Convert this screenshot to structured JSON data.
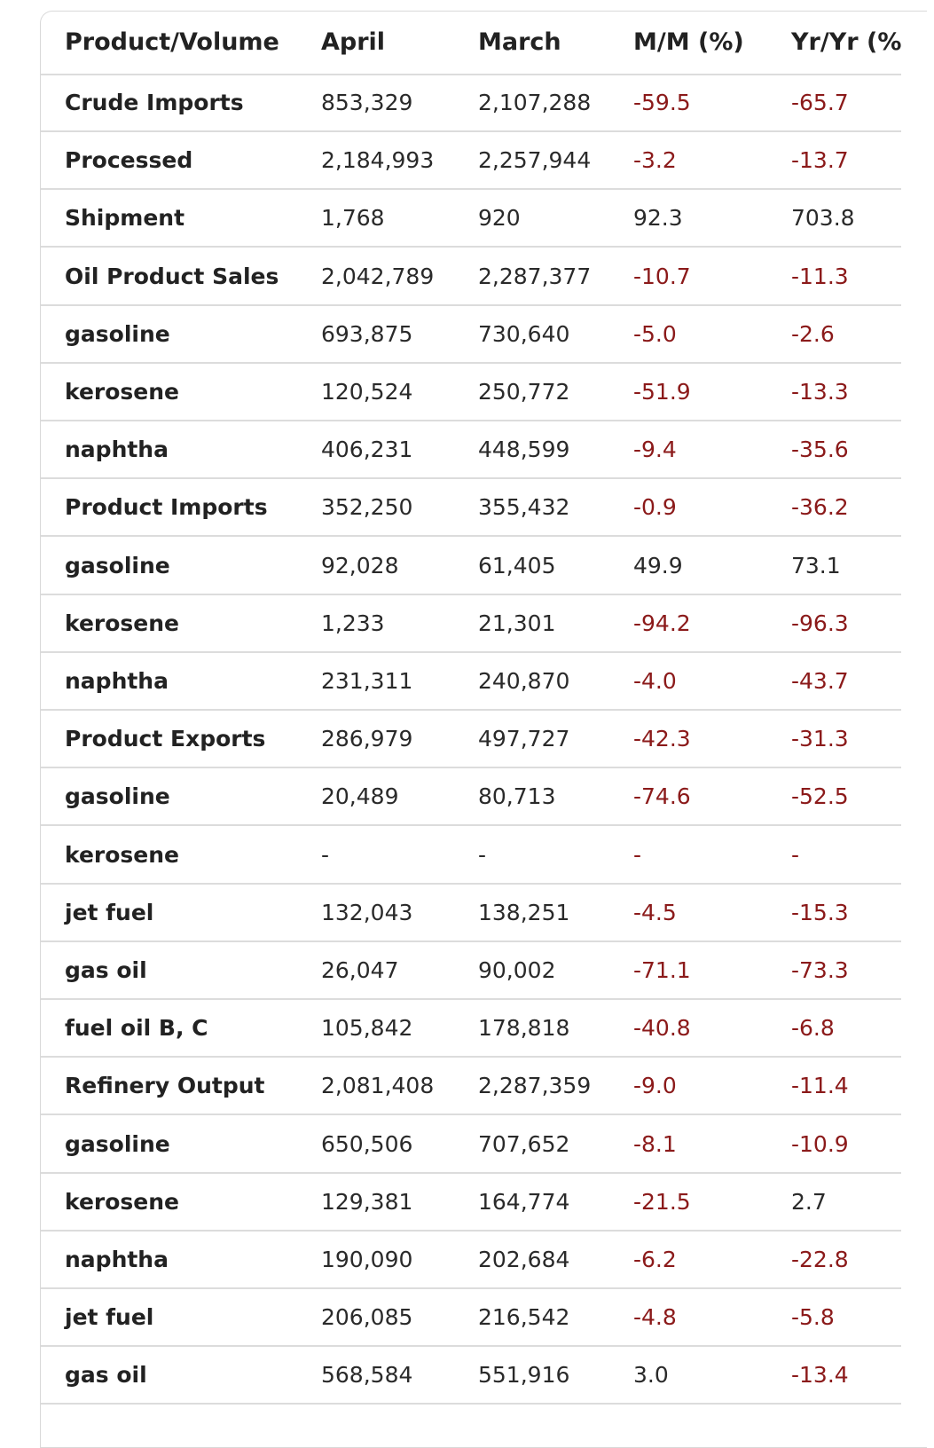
{
  "table": {
    "headers": [
      "Product/Volume",
      "April",
      "March",
      "M/M (%)",
      "Yr/Yr (%"
    ],
    "rows": [
      [
        "Crude Imports",
        "853,329",
        "2,107,288",
        "-59.5",
        "-65.7"
      ],
      [
        "Processed",
        "2,184,993",
        "2,257,944",
        "-3.2",
        "-13.7"
      ],
      [
        "Shipment",
        "1,768",
        "920",
        "92.3",
        "703.8"
      ],
      [
        "Oil Product Sales",
        "2,042,789",
        "2,287,377",
        "-10.7",
        "-11.3"
      ],
      [
        "gasoline",
        "693,875",
        "730,640",
        "-5.0",
        "-2.6"
      ],
      [
        "kerosene",
        "120,524",
        "250,772",
        "-51.9",
        "-13.3"
      ],
      [
        "naphtha",
        "406,231",
        "448,599",
        "-9.4",
        "-35.6"
      ],
      [
        "Product Imports",
        "352,250",
        "355,432",
        "-0.9",
        "-36.2"
      ],
      [
        "gasoline",
        "92,028",
        "61,405",
        "49.9",
        "73.1"
      ],
      [
        "kerosene",
        "1,233",
        "21,301",
        "-94.2",
        "-96.3"
      ],
      [
        "naphtha",
        "231,311",
        "240,870",
        "-4.0",
        "-43.7"
      ],
      [
        "Product Exports",
        "286,979",
        "497,727",
        "-42.3",
        "-31.3"
      ],
      [
        "gasoline",
        "20,489",
        "80,713",
        "-74.6",
        "-52.5"
      ],
      [
        "kerosene",
        "-",
        "-",
        "-",
        "-"
      ],
      [
        "jet fuel",
        "132,043",
        "138,251",
        "-4.5",
        "-15.3"
      ],
      [
        "gas oil",
        "26,047",
        "90,002",
        "-71.1",
        "-73.3"
      ],
      [
        "fuel oil B, C",
        "105,842",
        "178,818",
        "-40.8",
        "-6.8"
      ],
      [
        "Refinery Output",
        "2,081,408",
        "2,287,359",
        "-9.0",
        "-11.4"
      ],
      [
        "gasoline",
        "650,506",
        "707,652",
        "-8.1",
        "-10.9"
      ],
      [
        "kerosene",
        "129,381",
        "164,774",
        "-21.5",
        "2.7"
      ],
      [
        "naphtha",
        "190,090",
        "202,684",
        "-6.2",
        "-22.8"
      ],
      [
        "jet fuel",
        "206,085",
        "216,542",
        "-4.8",
        "-5.8"
      ],
      [
        "gas oil",
        "568,584",
        "551,916",
        "3.0",
        "-13.4"
      ]
    ]
  },
  "colors": {
    "negative": "#8b1a1a",
    "text": "#2a2a2a",
    "border": "#dcdcdc"
  }
}
